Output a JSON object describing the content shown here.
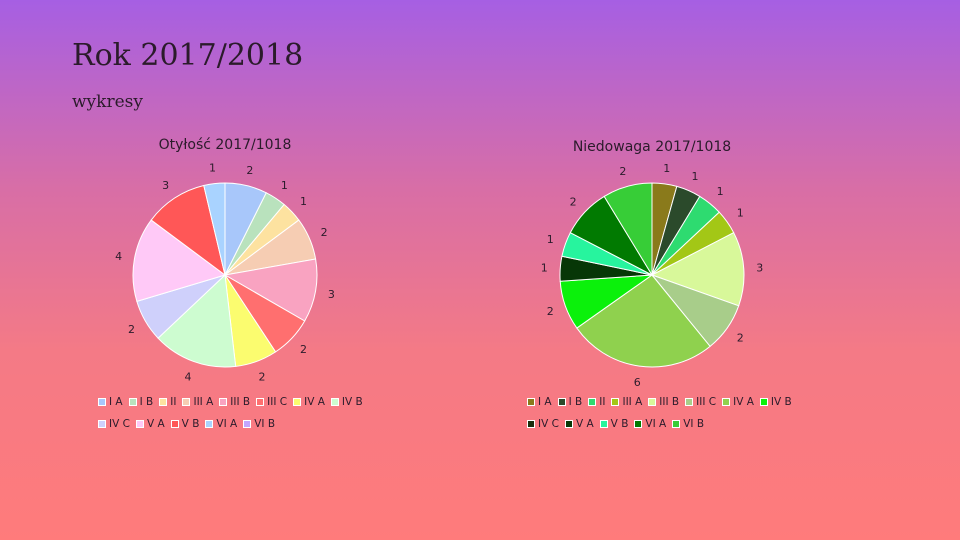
{
  "slide": {
    "title": "Rok 2017/2018",
    "subtitle": "wykresy"
  },
  "chart_data": [
    {
      "type": "pie",
      "title": "Otyłość 2017/1018",
      "categories": [
        "I A",
        "I B",
        "II",
        "III A",
        "III B",
        "III C",
        "IV A",
        "IV B",
        "IV C",
        "V A",
        "V B",
        "VI A",
        "VI B"
      ],
      "values": [
        2,
        1,
        1,
        2,
        3,
        2,
        2,
        4,
        2,
        4,
        3,
        1,
        0
      ],
      "colors": [
        "#a8c7fa",
        "#b9e2bd",
        "#fde2a0",
        "#f6cdb3",
        "#f9a3c1",
        "#ff6f6f",
        "#fbfc6f",
        "#cdfcd0",
        "#cfd0fb",
        "#ffc9f7",
        "#ff5757",
        "#a9d3ff",
        "#c3a5fe"
      ],
      "legend_position": "bottom"
    },
    {
      "type": "pie",
      "title": "Niedowaga 2017/1018",
      "categories": [
        "I A",
        "I B",
        "II",
        "III A",
        "III B",
        "III C",
        "IV A",
        "IV B",
        "IV C",
        "V A",
        "V B",
        "VI A",
        "VI B"
      ],
      "values": [
        1,
        1,
        1,
        1,
        3,
        2,
        6,
        2,
        0,
        1,
        1,
        2,
        2
      ],
      "colors": [
        "#8a7a1b",
        "#2b4a2b",
        "#2edb70",
        "#a3c716",
        "#d8f89a",
        "#a8cd8a",
        "#8fd14e",
        "#0bf10b",
        "#1a2e0e",
        "#073707",
        "#27f49e",
        "#017a01",
        "#37cd37"
      ],
      "legend_position": "bottom"
    }
  ]
}
